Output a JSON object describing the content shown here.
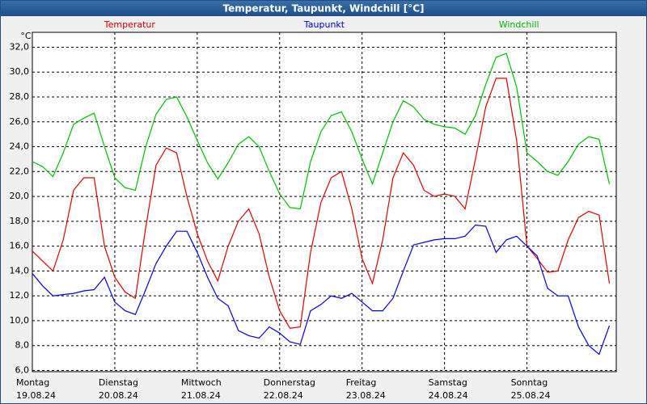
{
  "chart_data": {
    "type": "line",
    "title": "Temperatur, Taupunkt, Windchill [°C]",
    "ylabel": "°C",
    "x": [
      0,
      3,
      6,
      9,
      12,
      15,
      18,
      21,
      24,
      27,
      30,
      33,
      36,
      39,
      42,
      45,
      48,
      51,
      54,
      57,
      60,
      63,
      66,
      69,
      72,
      75,
      78,
      81,
      84,
      87,
      90,
      93,
      96,
      99,
      102,
      105,
      108,
      111,
      114,
      117,
      120,
      123,
      126,
      129,
      132,
      135,
      138,
      141,
      144,
      147,
      150,
      153,
      156,
      159,
      162,
      165,
      168
    ],
    "xlim": [
      0,
      170
    ],
    "xticks": [
      {
        "value": 0,
        "label": [
          "Montag",
          "19.08.24"
        ]
      },
      {
        "value": 24,
        "label": [
          "Dienstag",
          "20.08.24"
        ]
      },
      {
        "value": 48,
        "label": [
          "Mittwoch",
          "21.08.24"
        ]
      },
      {
        "value": 72,
        "label": [
          "Donnerstag",
          "22.08.24"
        ]
      },
      {
        "value": 96,
        "label": [
          "Freitag",
          "23.08.24"
        ]
      },
      {
        "value": 120,
        "label": [
          "Samstag",
          "24.08.24"
        ]
      },
      {
        "value": 144,
        "label": [
          "Sonntag",
          "25.08.24"
        ]
      }
    ],
    "ylim": [
      5.9,
      33.2
    ],
    "yticks": [
      {
        "value": 6,
        "label": "6,0"
      },
      {
        "value": 8,
        "label": "8,0"
      },
      {
        "value": 10,
        "label": "10,0"
      },
      {
        "value": 12,
        "label": "12,0"
      },
      {
        "value": 14,
        "label": "14,0"
      },
      {
        "value": 16,
        "label": "16,0"
      },
      {
        "value": 18,
        "label": "18,0"
      },
      {
        "value": 20,
        "label": "20,0"
      },
      {
        "value": 22,
        "label": "22,0"
      },
      {
        "value": 24,
        "label": "24,0"
      },
      {
        "value": 26,
        "label": "26,0"
      },
      {
        "value": 28,
        "label": "28,0"
      },
      {
        "value": 30,
        "label": "30,0"
      },
      {
        "value": 32,
        "label": "32,0"
      }
    ],
    "grid": true,
    "series": [
      {
        "name": "Temperatur",
        "color": "#dd0000",
        "values": [
          15.6,
          14.8,
          14.0,
          16.5,
          20.5,
          21.5,
          21.5,
          16,
          13.5,
          12.3,
          11.8,
          17.5,
          22.5,
          23.9,
          23.5,
          20,
          17,
          14.8,
          13.2,
          16,
          18,
          19,
          17,
          13.5,
          10.8,
          9.4,
          9.5,
          15.5,
          19.5,
          21.5,
          22,
          19,
          15,
          13,
          16.5,
          21.5,
          23.5,
          22.5,
          20.5,
          20,
          20.2,
          20,
          19,
          23,
          27.2,
          29.5,
          29.5,
          24.5,
          16,
          15,
          13.9,
          14,
          16.5,
          18.3,
          18.8,
          18.5,
          13
        ]
      },
      {
        "name": "Taupunkt",
        "color": "#0000dd",
        "values": [
          13.8,
          12.8,
          12.0,
          12.1,
          12.2,
          12.4,
          12.5,
          13.5,
          11.5,
          10.8,
          10.5,
          12.5,
          14.6,
          16,
          17.2,
          17.2,
          15.5,
          13.5,
          11.8,
          11.2,
          9.2,
          8.8,
          8.6,
          9.5,
          9,
          8.3,
          8.1,
          10.8,
          11.3,
          12,
          11.8,
          12.2,
          11.5,
          10.8,
          10.8,
          11.8,
          14,
          16.1,
          16.3,
          16.5,
          16.6,
          16.6,
          16.8,
          17.7,
          17.6,
          15.5,
          16.5,
          16.8,
          16,
          15.2,
          12.6,
          12,
          12,
          9.5,
          8,
          7.3,
          9.6
        ]
      },
      {
        "name": "Windchill",
        "color": "#00bb00",
        "values": [
          22.8,
          22.4,
          21.6,
          23.5,
          25.8,
          26.3,
          26.7,
          24,
          21.5,
          20.7,
          20.5,
          24,
          26.6,
          27.8,
          28,
          26.4,
          24.5,
          22.7,
          21.4,
          22.7,
          24.2,
          24.8,
          24,
          22,
          20.2,
          19.1,
          19,
          22.8,
          25.2,
          26.5,
          26.8,
          25.2,
          23,
          21,
          23.5,
          26,
          27.7,
          27.2,
          26.2,
          25.8,
          25.6,
          25.5,
          25,
          26.5,
          29,
          31.2,
          31.5,
          28.8,
          23.5,
          22.8,
          22,
          21.7,
          22.8,
          24.2,
          24.8,
          24.6,
          21
        ]
      }
    ]
  }
}
